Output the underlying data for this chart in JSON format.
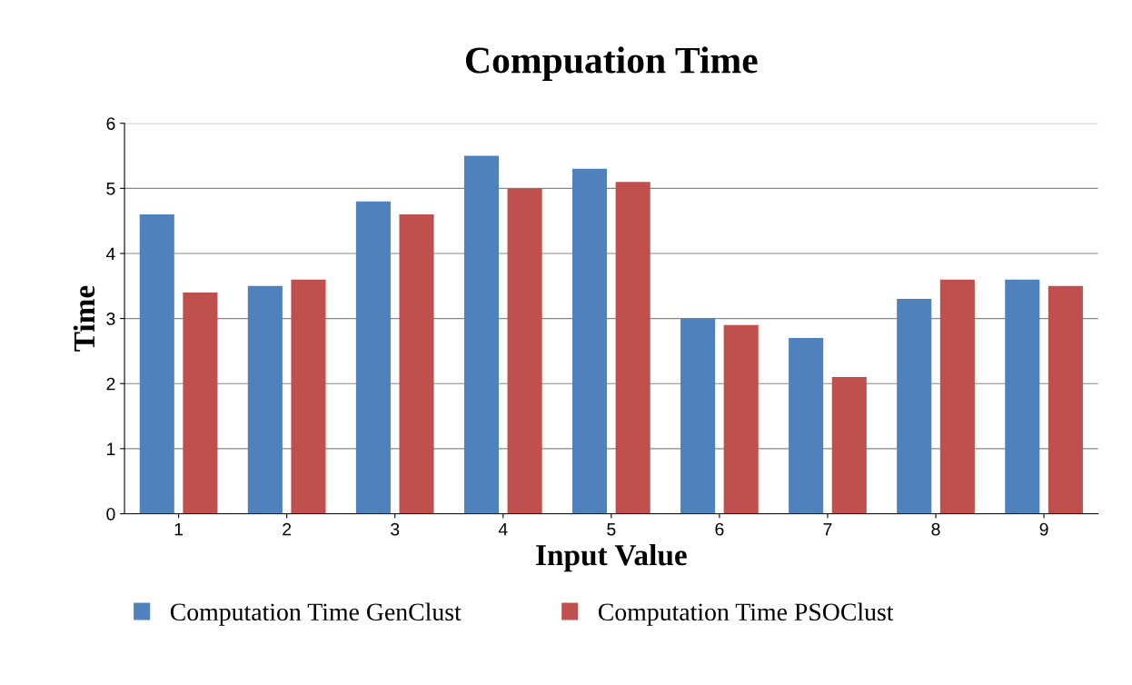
{
  "chart_data": {
    "type": "bar",
    "title": "Compuation Time",
    "xlabel": "Input Value",
    "ylabel": "Time",
    "categories": [
      "1",
      "2",
      "3",
      "4",
      "5",
      "6",
      "7",
      "8",
      "9"
    ],
    "series": [
      {
        "name": "Computation Time GenClust",
        "color": "#4f81bd",
        "values": [
          4.6,
          3.5,
          4.8,
          5.5,
          5.3,
          3.0,
          2.7,
          3.3,
          3.6
        ]
      },
      {
        "name": "Computation Time PSOClust",
        "color": "#c0504d",
        "values": [
          3.4,
          3.6,
          4.6,
          5.0,
          5.1,
          2.9,
          2.1,
          3.6,
          3.5
        ]
      }
    ],
    "ylim": [
      0,
      6
    ],
    "yticks": [
      0,
      1,
      2,
      3,
      4,
      5,
      6
    ],
    "grid": "y",
    "legend": "bottom"
  }
}
